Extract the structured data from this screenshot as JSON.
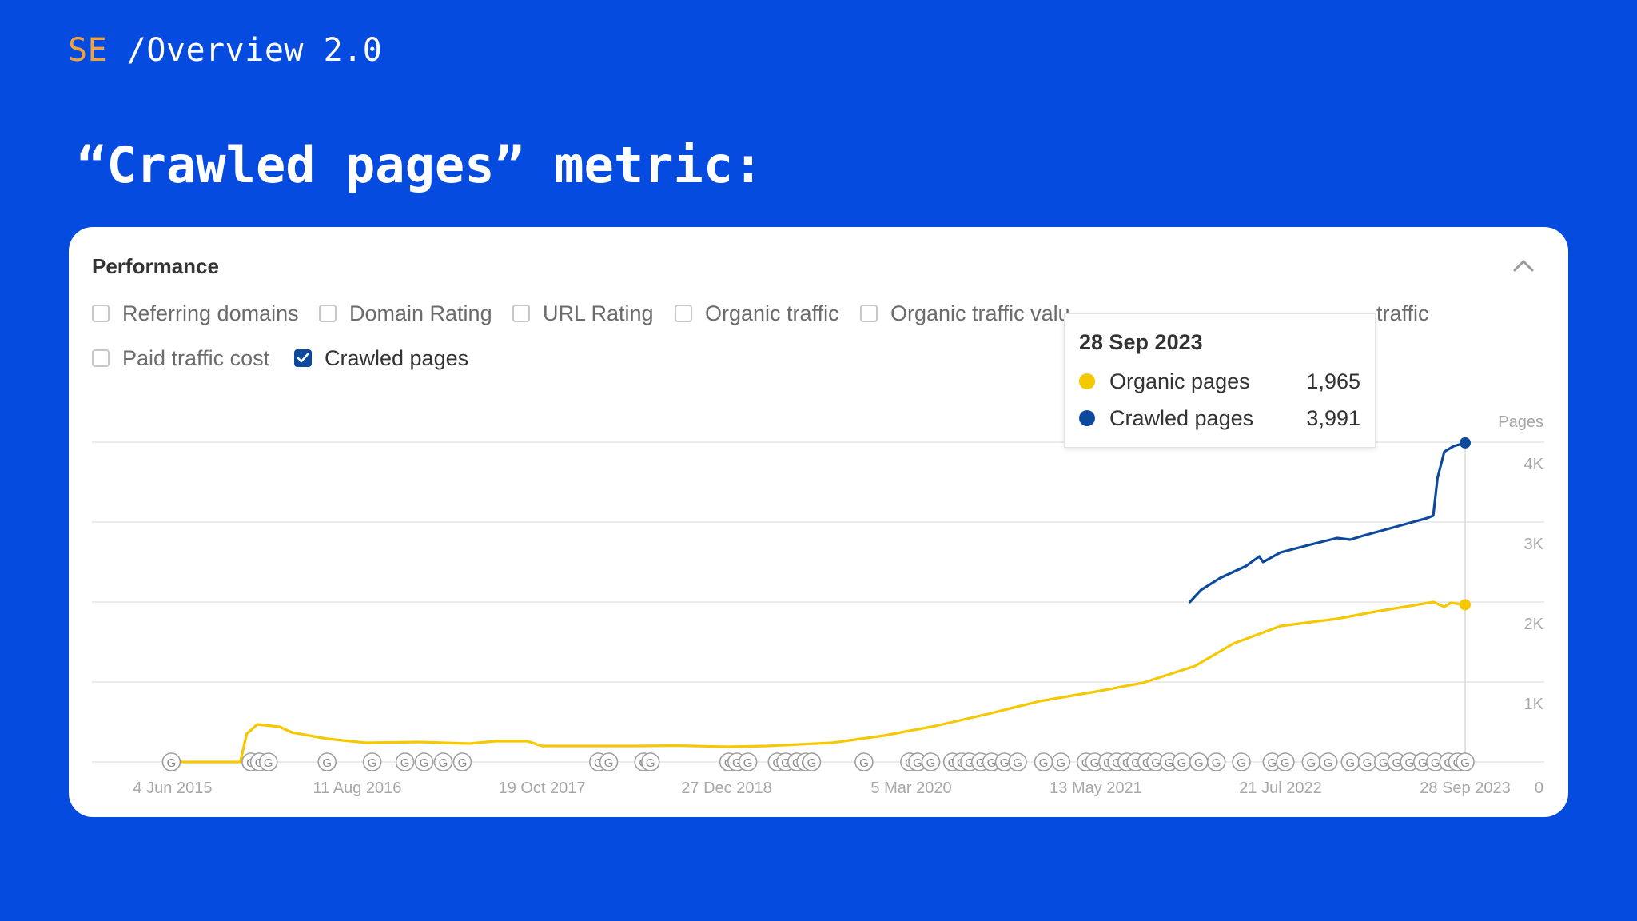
{
  "header": {
    "brand": "SE",
    "path": "/Overview 2.0",
    "headline": "“Crawled pages” metric:"
  },
  "card": {
    "title": "Performance",
    "collapse_icon": "chevron-up-icon",
    "metrics": [
      {
        "label": "Referring domains",
        "checked": false
      },
      {
        "label": "Domain Rating",
        "checked": false
      },
      {
        "label": "URL Rating",
        "checked": false
      },
      {
        "label": "Organic traffic",
        "checked": false
      },
      {
        "label": "Organic traffic valu",
        "checked": false
      },
      {
        "label": "traffic",
        "checked": false
      },
      {
        "label": "Paid traffic cost",
        "checked": false
      },
      {
        "label": "Crawled pages",
        "checked": true
      }
    ]
  },
  "tooltip": {
    "date": "28 Sep 2023",
    "rows": [
      {
        "name": "Organic pages",
        "value": "1,965",
        "color": "#f5c800"
      },
      {
        "name": "Crawled pages",
        "value": "3,991",
        "color": "#0d4a9e"
      }
    ]
  },
  "colors": {
    "background": "#064be0",
    "brand_accent": "#f2a23a",
    "organic": "#f5c800",
    "crawled": "#0d4a9e"
  },
  "chart_data": {
    "type": "line",
    "ylabel": "Pages",
    "ylim": [
      0,
      4000
    ],
    "y_ticks": [
      "0",
      "1K",
      "2K",
      "3K",
      "4K"
    ],
    "y_tick_values": [
      0,
      1000,
      2000,
      3000,
      4000
    ],
    "x_ticks": [
      "4 Jun 2015",
      "11 Aug 2016",
      "19 Oct 2017",
      "27 Dec 2018",
      "5 Mar 2020",
      "13 May 2021",
      "21 Jul 2022",
      "28 Sep 2023"
    ],
    "grid": true,
    "series": [
      {
        "name": "Organic pages",
        "color": "#f5c800",
        "points": [
          [
            "2015-06-04",
            0
          ],
          [
            "2015-10-01",
            0
          ],
          [
            "2015-11-10",
            0
          ],
          [
            "2015-11-25",
            350
          ],
          [
            "2015-12-20",
            470
          ],
          [
            "2016-02-10",
            440
          ],
          [
            "2016-03-10",
            370
          ],
          [
            "2016-06-01",
            290
          ],
          [
            "2016-09-01",
            240
          ],
          [
            "2017-01-01",
            250
          ],
          [
            "2017-05-01",
            230
          ],
          [
            "2017-07-01",
            260
          ],
          [
            "2017-09-15",
            260
          ],
          [
            "2017-10-19",
            200
          ],
          [
            "2018-06-01",
            200
          ],
          [
            "2018-09-01",
            205
          ],
          [
            "2018-12-27",
            190
          ],
          [
            "2019-04-01",
            200
          ],
          [
            "2019-09-01",
            240
          ],
          [
            "2020-01-01",
            330
          ],
          [
            "2020-05-01",
            450
          ],
          [
            "2020-09-01",
            600
          ],
          [
            "2021-01-01",
            760
          ],
          [
            "2021-05-13",
            880
          ],
          [
            "2021-09-01",
            990
          ],
          [
            "2022-01-01",
            1200
          ],
          [
            "2022-04-01",
            1480
          ],
          [
            "2022-07-21",
            1700
          ],
          [
            "2022-12-01",
            1790
          ],
          [
            "2023-03-01",
            1880
          ],
          [
            "2023-06-01",
            1960
          ],
          [
            "2023-07-15",
            2000
          ],
          [
            "2023-08-10",
            1940
          ],
          [
            "2023-08-25",
            1990
          ],
          [
            "2023-09-28",
            1965
          ]
        ]
      },
      {
        "name": "Crawled pages",
        "color": "#0d4a9e",
        "points": [
          [
            "2021-12-20",
            2000
          ],
          [
            "2022-01-15",
            2150
          ],
          [
            "2022-03-01",
            2300
          ],
          [
            "2022-05-01",
            2450
          ],
          [
            "2022-06-01",
            2570
          ],
          [
            "2022-06-10",
            2500
          ],
          [
            "2022-07-21",
            2620
          ],
          [
            "2022-10-01",
            2720
          ],
          [
            "2022-12-01",
            2800
          ],
          [
            "2023-01-01",
            2780
          ],
          [
            "2023-02-01",
            2830
          ],
          [
            "2023-05-01",
            2960
          ],
          [
            "2023-07-01",
            3050
          ],
          [
            "2023-07-15",
            3080
          ],
          [
            "2023-07-25",
            3550
          ],
          [
            "2023-08-10",
            3880
          ],
          [
            "2023-09-01",
            3950
          ],
          [
            "2023-09-28",
            3991
          ]
        ]
      }
    ],
    "google_update_markers": [
      "2015-06-01",
      "2015-12-05",
      "2015-12-25",
      "2016-01-15",
      "2016-06-01",
      "2016-09-15",
      "2016-12-01",
      "2017-01-15",
      "2017-03-01",
      "2017-04-15",
      "2018-03-01",
      "2018-03-25",
      "2018-06-15",
      "2018-07-01",
      "2019-01-01",
      "2019-01-20",
      "2019-02-15",
      "2019-04-25",
      "2019-05-15",
      "2019-06-10",
      "2019-07-01",
      "2019-07-15",
      "2019-11-15",
      "2020-03-01",
      "2020-03-20",
      "2020-04-20",
      "2020-06-10",
      "2020-07-01",
      "2020-07-20",
      "2020-08-15",
      "2020-09-10",
      "2020-10-10",
      "2020-11-10",
      "2021-01-10",
      "2021-02-20",
      "2021-04-20",
      "2021-05-10",
      "2021-06-10",
      "2021-07-01",
      "2021-07-25",
      "2021-08-15",
      "2021-09-10",
      "2021-10-01",
      "2021-11-01",
      "2021-12-01",
      "2022-01-10",
      "2022-02-20",
      "2022-04-20",
      "2022-07-01",
      "2022-08-01",
      "2022-10-01",
      "2022-11-10",
      "2023-01-01",
      "2023-02-10",
      "2023-03-20",
      "2023-04-20",
      "2023-05-20",
      "2023-06-20",
      "2023-07-20",
      "2023-08-20",
      "2023-09-10",
      "2023-09-28"
    ],
    "legend": "tooltip"
  }
}
